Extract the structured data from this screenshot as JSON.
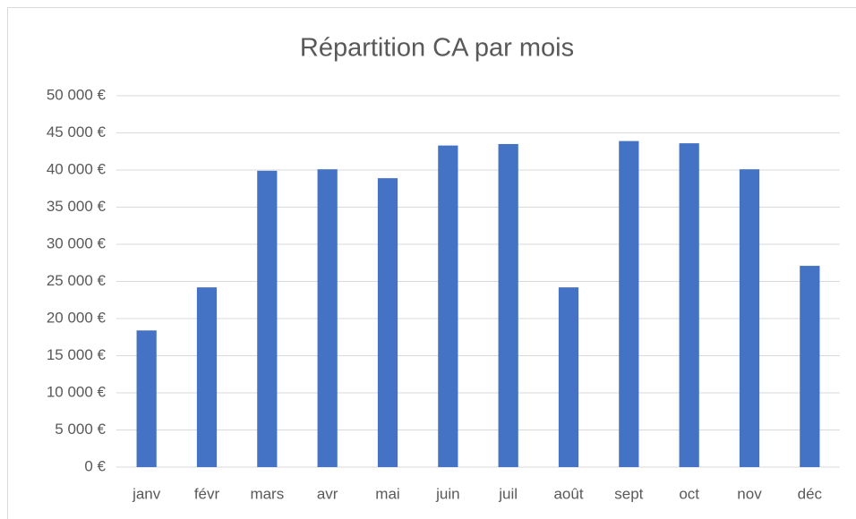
{
  "chart_data": {
    "type": "bar",
    "title": "Répartition CA par mois",
    "categories": [
      "janv",
      "févr",
      "mars",
      "avr",
      "mai",
      "juin",
      "juil",
      "août",
      "sept",
      "oct",
      "nov",
      "déc"
    ],
    "values": [
      18400,
      24200,
      39900,
      40100,
      38900,
      43300,
      43500,
      24200,
      43900,
      43600,
      40100,
      27100
    ],
    "color": "#4472c4",
    "ylim": [
      0,
      50000
    ],
    "yticks": [
      {
        "value": 0,
        "label": "0 €"
      },
      {
        "value": 5000,
        "label": "5 000 €"
      },
      {
        "value": 10000,
        "label": "10 000 €"
      },
      {
        "value": 15000,
        "label": "15 000 €"
      },
      {
        "value": 20000,
        "label": "20 000 €"
      },
      {
        "value": 25000,
        "label": "25 000 €"
      },
      {
        "value": 30000,
        "label": "30 000 €"
      },
      {
        "value": 35000,
        "label": "35 000 €"
      },
      {
        "value": 40000,
        "label": "40 000 €"
      },
      {
        "value": 45000,
        "label": "45 000 €"
      },
      {
        "value": 50000,
        "label": "50 000 €"
      }
    ],
    "grid": true
  }
}
